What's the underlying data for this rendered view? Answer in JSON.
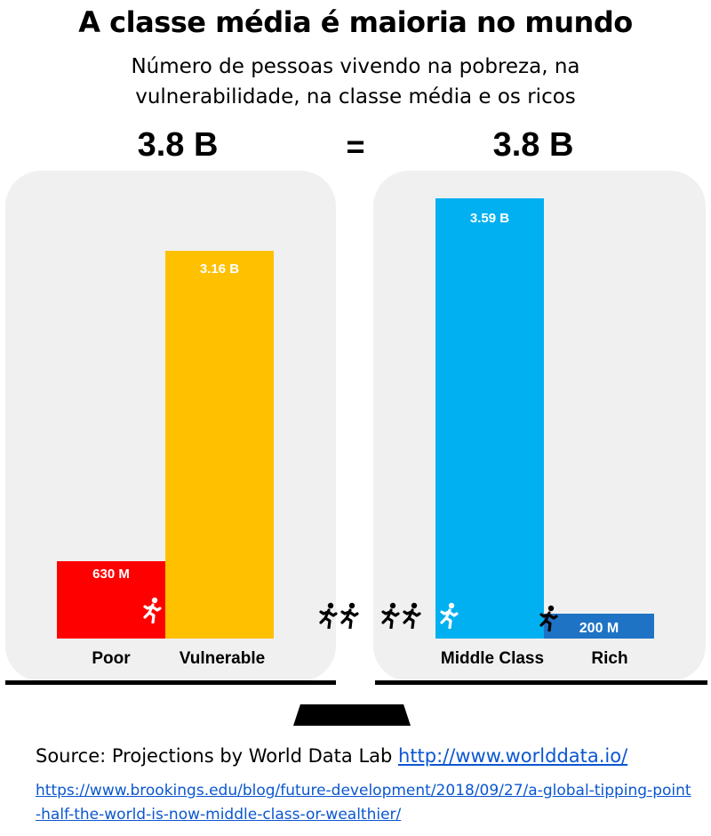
{
  "title": "A classe média é maioria no mundo",
  "subtitle": "Número de pessoas vivendo na pobreza, na vulnerabilidade, na classe média e os ricos",
  "totals": {
    "left": "3.8 B",
    "equals": "=",
    "right": "3.8 B"
  },
  "chart_data": {
    "type": "bar",
    "title": "A classe média é maioria no mundo",
    "subtitle": "Número de pessoas vivendo na pobreza, na vulnerabilidade, na classe média e os ricos",
    "xlabel": "",
    "ylabel": "",
    "unit": "people",
    "categories": [
      "Poor",
      "Vulnerable",
      "Middle Class",
      "Rich"
    ],
    "values": [
      0.63,
      3.16,
      3.59,
      0.2
    ],
    "value_labels": [
      "630 M",
      "3.16 B",
      "3.59 B",
      "200 M"
    ],
    "groups": [
      {
        "total": "3.8 B",
        "categories": [
          "Poor",
          "Vulnerable"
        ]
      },
      {
        "total": "3.8 B",
        "categories": [
          "Middle Class",
          "Rich"
        ]
      }
    ],
    "colors": [
      "#ff0000",
      "#ffc000",
      "#00b0f0",
      "#1f73c4"
    ],
    "ylim": [
      0,
      3.8
    ],
    "grid": false,
    "legend": "none"
  },
  "colors": {
    "panel_bg": "#f0f0f0",
    "link": "#0b57d0",
    "text": "#000000"
  },
  "source": {
    "prefix": "Source: Projections by World Data Lab ",
    "link1": "http://www.worlddata.io/",
    "link2": "https://www.brookings.edu/blog/future-development/2018/09/27/a-global-tipping-point-half-the-world-is-now-middle-class-or-wealthier/"
  },
  "icons": [
    "running-person-icon"
  ]
}
